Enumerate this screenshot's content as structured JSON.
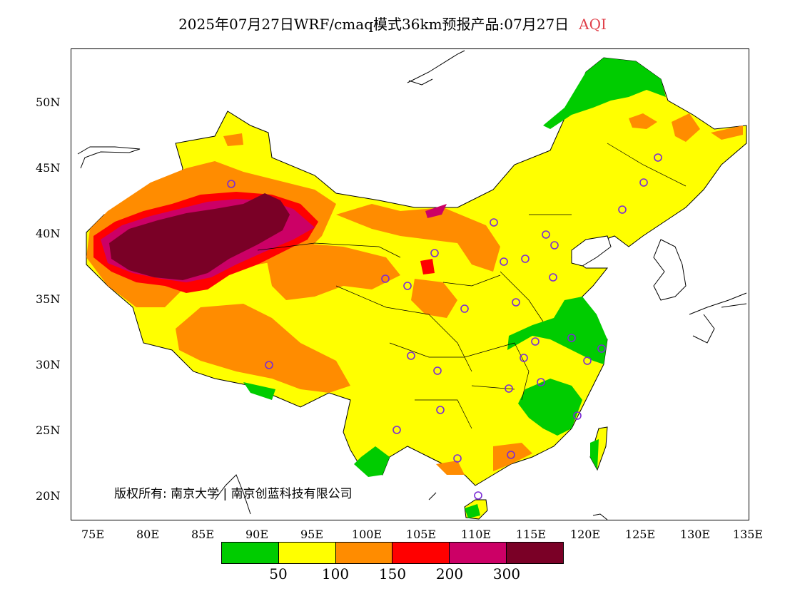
{
  "title": {
    "main": "2025年07月27日WRF/cmaq模式36km预报产品:07月27日",
    "variable": "AQI",
    "variable_color": "#e0404a"
  },
  "map": {
    "lon_range": [
      73,
      135
    ],
    "lat_range": [
      18,
      54
    ],
    "lat_ticks": [
      "50N",
      "45N",
      "40N",
      "35N",
      "30N",
      "25N",
      "20N"
    ],
    "lon_ticks": [
      "75E",
      "80E",
      "85E",
      "90E",
      "95E",
      "100E",
      "105E",
      "110E",
      "115E",
      "120E",
      "125E",
      "130E",
      "135E"
    ],
    "copyright": "版权所有: 南京大学 | 南京创蓝科技有限公司",
    "station_marker_color": "#7a2bd6"
  },
  "legend": {
    "colors": [
      "#00cc00",
      "#ffff00",
      "#ff8c00",
      "#ff0000",
      "#cc0066",
      "#7a0026"
    ],
    "labels": [
      "50",
      "100",
      "150",
      "200",
      "300"
    ]
  }
}
